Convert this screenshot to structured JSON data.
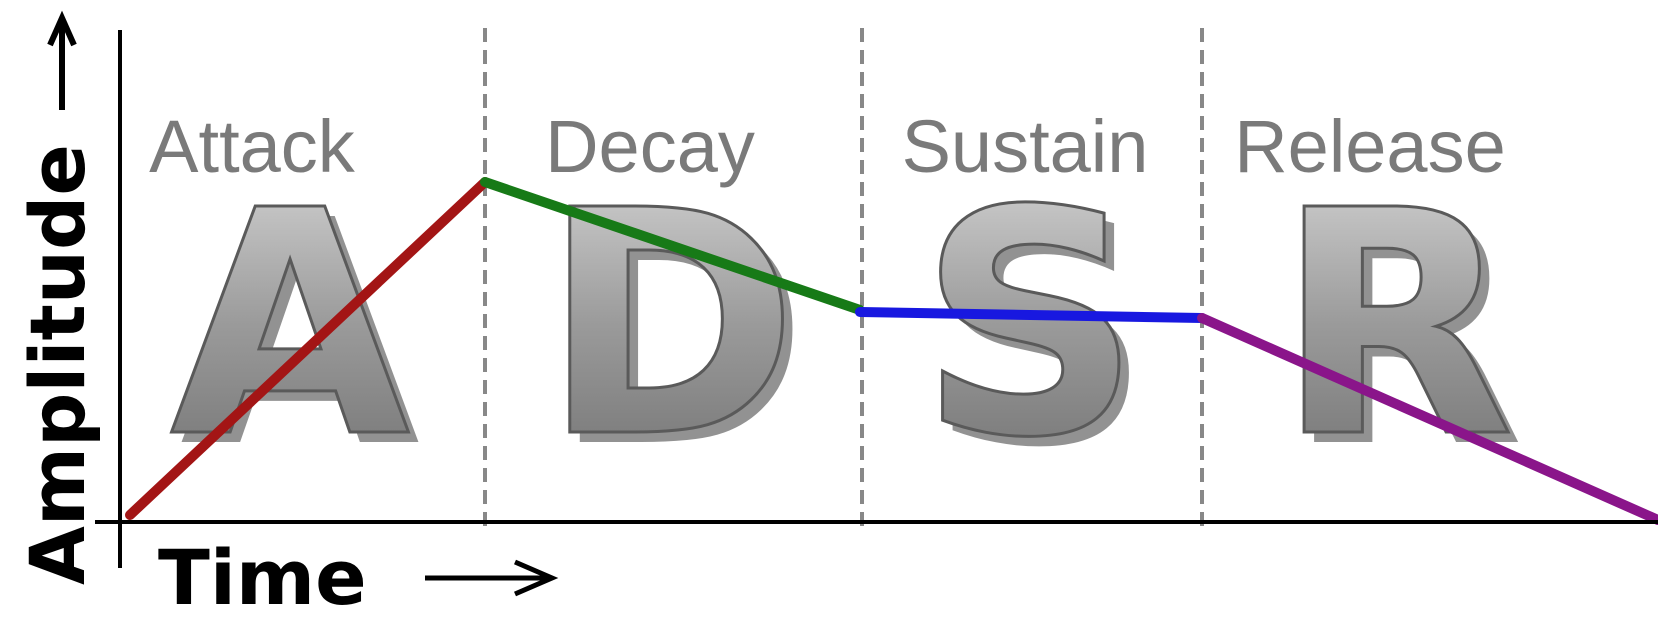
{
  "phases": [
    {
      "label": "Attack",
      "letter": "A"
    },
    {
      "label": "Decay",
      "letter": "D"
    },
    {
      "label": "Sustain",
      "letter": "S"
    },
    {
      "label": "Release",
      "letter": "R"
    }
  ],
  "axes": {
    "y_label": "Amplitude",
    "x_label": "Time"
  }
}
